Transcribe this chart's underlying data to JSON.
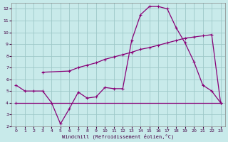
{
  "xlabel": "Windchill (Refroidissement éolien,°C)",
  "bg_color": "#c8eaea",
  "grid_color": "#9ec8c8",
  "line_color": "#880077",
  "xlim": [
    -0.5,
    23.5
  ],
  "ylim": [
    2,
    12.5
  ],
  "xticks": [
    0,
    1,
    2,
    3,
    4,
    5,
    6,
    7,
    8,
    9,
    10,
    11,
    12,
    13,
    14,
    15,
    16,
    17,
    18,
    19,
    20,
    21,
    22,
    23
  ],
  "yticks": [
    2,
    3,
    4,
    5,
    6,
    7,
    8,
    9,
    10,
    11,
    12
  ],
  "line1_x": [
    0,
    1,
    2,
    3,
    4,
    5,
    6,
    7,
    8,
    9,
    10,
    11,
    12,
    13,
    14,
    15,
    16,
    17,
    18,
    19,
    20,
    21,
    22,
    23
  ],
  "line1_y": [
    5.5,
    5.0,
    5.0,
    5.0,
    4.0,
    2.2,
    3.5,
    4.9,
    4.4,
    4.5,
    5.3,
    5.2,
    5.2,
    9.3,
    11.5,
    12.2,
    12.2,
    12.0,
    10.4,
    9.1,
    7.5,
    5.5,
    5.0,
    4.0
  ],
  "line2_x": [
    3,
    6,
    7,
    8,
    9,
    10,
    11,
    12,
    13,
    14,
    15,
    16,
    17,
    18,
    19,
    20,
    21,
    22,
    23
  ],
  "line2_y": [
    6.6,
    6.7,
    7.0,
    7.2,
    7.4,
    7.7,
    7.9,
    8.1,
    8.3,
    8.55,
    8.7,
    8.9,
    9.1,
    9.3,
    9.5,
    9.6,
    9.7,
    9.8,
    4.0
  ],
  "line3_x": [
    0,
    23
  ],
  "line3_y": [
    4.0,
    4.0
  ],
  "figsize": [
    3.2,
    2.0
  ],
  "dpi": 100
}
